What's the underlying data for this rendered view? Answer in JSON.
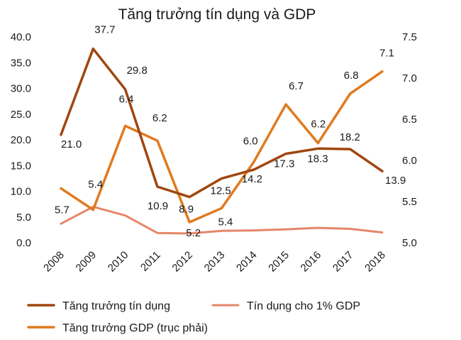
{
  "chart_data": {
    "type": "line",
    "title": "Tăng trưởng tín dụng và GDP",
    "categories": [
      "2008",
      "2009",
      "2010",
      "2011",
      "2012",
      "2013",
      "2014",
      "2015",
      "2016",
      "2017",
      "2018"
    ],
    "left_axis": {
      "min": 0,
      "max": 40,
      "step": 5,
      "tick_labels": [
        "0.0",
        "5.0",
        "10.0",
        "15.0",
        "20.0",
        "25.0",
        "30.0",
        "35.0",
        "40.0"
      ]
    },
    "right_axis": {
      "min": 5.0,
      "max": 7.5,
      "step": 0.5,
      "tick_labels": [
        "5.0",
        "5.5",
        "6.0",
        "6.5",
        "7.0",
        "7.5"
      ]
    },
    "series": [
      {
        "name": "Tăng trưởng tín dụng",
        "axis": "left",
        "color": "#a0460f",
        "values": [
          21.0,
          37.7,
          29.8,
          10.9,
          8.9,
          12.5,
          14.2,
          17.3,
          18.3,
          18.2,
          13.9
        ],
        "labels": [
          "21.0",
          "37.7",
          "29.8",
          "10.9",
          "8.9",
          "12.5",
          "14.2",
          "17.3",
          "18.3",
          "18.2",
          "13.9"
        ]
      },
      {
        "name": "Tín dụng cho 1% GDP",
        "axis": "left",
        "color": "#e5866a",
        "values": [
          3.7,
          7.0,
          5.3,
          1.9,
          1.8,
          2.3,
          2.4,
          2.6,
          2.9,
          2.7,
          2.0
        ],
        "labels": []
      },
      {
        "name": "Tăng trưởng GDP (trục phải)",
        "axis": "right",
        "color": "#e07a1f",
        "values": [
          5.66,
          5.4,
          6.42,
          6.24,
          5.25,
          5.42,
          5.98,
          6.68,
          6.21,
          6.81,
          7.08
        ],
        "labels": [
          "5.7",
          "5.4",
          "6.4",
          "6.2",
          "5.2",
          "5.4",
          "6.0",
          "6.7",
          "6.2",
          "6.8",
          "7.1"
        ]
      }
    ],
    "legend": [
      {
        "label": "Tăng trưởng tín dụng",
        "series": 0
      },
      {
        "label": "Tín dụng cho 1% GDP",
        "series": 1
      },
      {
        "label": "Tăng trưởng GDP (trục phải)",
        "series": 2
      }
    ],
    "legend_position": "bottom",
    "grid": false
  }
}
